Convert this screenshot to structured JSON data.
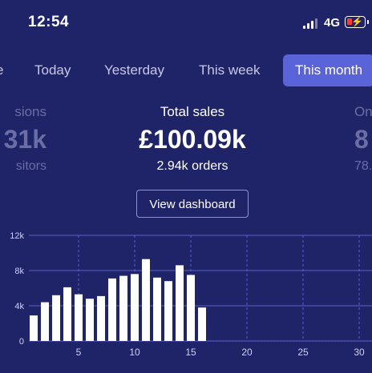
{
  "status_bar": {
    "time": "12:54",
    "network": "4G"
  },
  "tabs": [
    {
      "label": "e",
      "active": false
    },
    {
      "label": "Today",
      "active": false
    },
    {
      "label": "Yesterday",
      "active": false
    },
    {
      "label": "This week",
      "active": false
    },
    {
      "label": "This month",
      "active": true
    }
  ],
  "kpis": {
    "left": {
      "label": "sions",
      "value": "31k",
      "sub": "sitors"
    },
    "center": {
      "label": "Total sales",
      "value": "£100.09k",
      "sub": "2.94k orders"
    },
    "right": {
      "label": "On",
      "value": "8",
      "sub": "78."
    }
  },
  "view_dashboard_label": "View dashboard",
  "chart_data": {
    "type": "bar",
    "categories": [
      "1",
      "2",
      "3",
      "4",
      "5",
      "6",
      "7",
      "8",
      "9",
      "10",
      "11",
      "12",
      "13",
      "14",
      "15",
      "16"
    ],
    "values": [
      2900,
      4400,
      5200,
      6100,
      5300,
      4800,
      5100,
      7100,
      7400,
      7600,
      9300,
      7200,
      6800,
      8600,
      7500,
      3800
    ],
    "x_ticks": [
      "5",
      "10",
      "15",
      "20",
      "25",
      "30"
    ],
    "y_ticks": [
      "0",
      "4k",
      "8k",
      "12k"
    ],
    "ylim": [
      0,
      12000
    ],
    "xlim": [
      1,
      31
    ],
    "grid": true,
    "bar_color": "#ffffff",
    "grid_color": "#5a60c8"
  },
  "colors": {
    "background": "#1f2367",
    "accent": "#5a64d8",
    "inactive_text": "#c6c8e6",
    "muted_text": "#6a6ea4"
  }
}
